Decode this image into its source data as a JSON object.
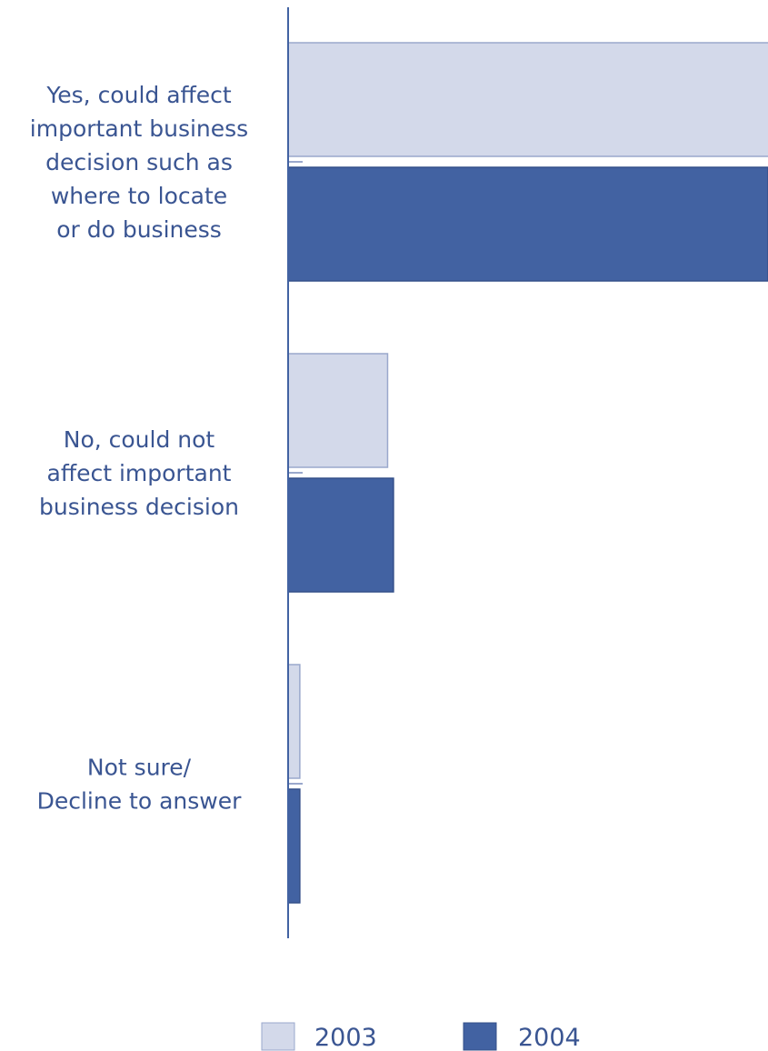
{
  "chart_data": {
    "type": "bar",
    "orientation": "horizontal",
    "title": "",
    "xlabel": "",
    "ylabel": "",
    "categories": [
      "Yes, could affect important business decision such as where to locate or do business",
      "No, could not affect important business decision",
      "Not sure/ Decline to answer"
    ],
    "category_lines": [
      [
        "Yes, could affect",
        "important business",
        "decision such as",
        "where to locate",
        "or do business"
      ],
      [
        "No, could not",
        "affect important",
        "business decision"
      ],
      [
        "Not sure/",
        "Decline to answer"
      ]
    ],
    "series": [
      {
        "name": "2003",
        "color": "#d3d9ea",
        "stroke": "#9aa8cc",
        "values": [
          83,
          17,
          2
        ]
      },
      {
        "name": "2004",
        "color": "#4262a2",
        "stroke": "#34508a",
        "values": [
          82,
          18,
          2
        ]
      }
    ],
    "xlim": [
      0,
      82
    ],
    "axis_ticks_shown": false,
    "grid": false,
    "legend": "bottom-center"
  }
}
